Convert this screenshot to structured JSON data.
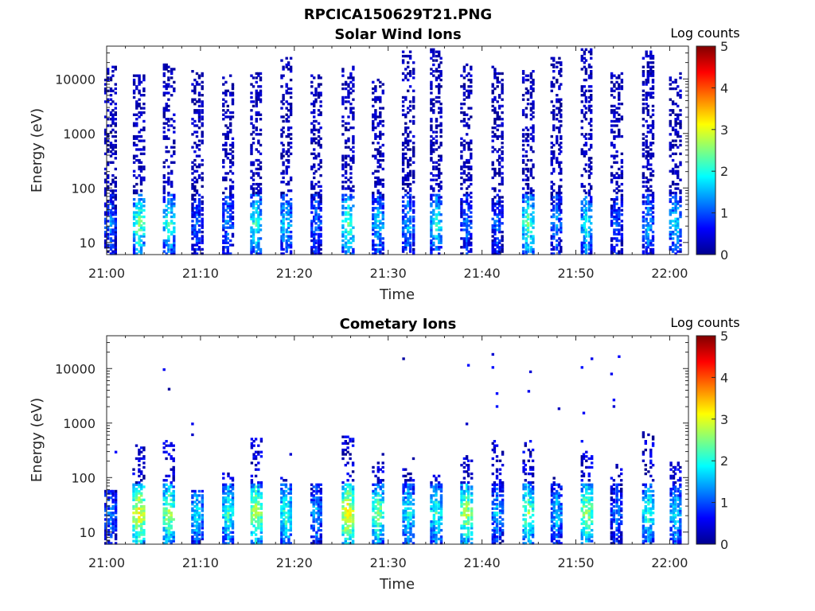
{
  "figure": {
    "title": "RPCICA150629T21.PNG"
  },
  "chart_data": [
    {
      "type": "heatmap",
      "title": "Solar Wind Ions",
      "xlabel": "Time",
      "ylabel": "Energy (eV)",
      "x_ticks": [
        "21:00",
        "21:10",
        "21:20",
        "21:30",
        "21:40",
        "21:50",
        "22:00"
      ],
      "x_range_minutes": [
        0,
        62
      ],
      "y_ticks": [
        "10",
        "100",
        "1000",
        "10000"
      ],
      "y_scale": "log",
      "y_range": [
        6,
        40000
      ],
      "colorbar": {
        "label": "Log counts",
        "ticks": [
          "0",
          "1",
          "2",
          "3",
          "4",
          "5"
        ],
        "range": [
          0,
          5
        ],
        "colormap": "jet"
      },
      "sweeps": [
        {
          "t": 0.3,
          "peak": 1.3,
          "emax": 18000
        },
        {
          "t": 3.3,
          "peak": 2.5,
          "emax": 12000
        },
        {
          "t": 6.5,
          "peak": 2.2,
          "emax": 19000
        },
        {
          "t": 9.5,
          "peak": 1.2,
          "emax": 14000
        },
        {
          "t": 12.8,
          "peak": 1.4,
          "emax": 12000
        },
        {
          "t": 15.8,
          "peak": 2.2,
          "emax": 13000
        },
        {
          "t": 19.0,
          "peak": 1.8,
          "emax": 25000
        },
        {
          "t": 22.2,
          "peak": 1.3,
          "emax": 12000
        },
        {
          "t": 25.6,
          "peak": 2.4,
          "emax": 20000
        },
        {
          "t": 28.8,
          "peak": 1.8,
          "emax": 10000
        },
        {
          "t": 32.0,
          "peak": 1.6,
          "emax": 32000
        },
        {
          "t": 35.0,
          "peak": 2.0,
          "emax": 35000
        },
        {
          "t": 38.2,
          "peak": 1.3,
          "emax": 20000
        },
        {
          "t": 41.5,
          "peak": 1.2,
          "emax": 18000
        },
        {
          "t": 44.8,
          "peak": 2.4,
          "emax": 16000
        },
        {
          "t": 47.8,
          "peak": 1.4,
          "emax": 26000
        },
        {
          "t": 51.0,
          "peak": 2.0,
          "emax": 35000
        },
        {
          "t": 54.2,
          "peak": 1.2,
          "emax": 13000
        },
        {
          "t": 57.6,
          "peak": 1.5,
          "emax": 32000
        },
        {
          "t": 60.5,
          "peak": 1.8,
          "emax": 13000
        }
      ]
    },
    {
      "type": "heatmap",
      "title": "Cometary Ions",
      "xlabel": "Time",
      "ylabel": "Energy (eV)",
      "x_ticks": [
        "21:00",
        "21:10",
        "21:20",
        "21:30",
        "21:40",
        "21:50",
        "22:00"
      ],
      "x_range_minutes": [
        0,
        62
      ],
      "y_ticks": [
        "10",
        "100",
        "1000",
        "10000"
      ],
      "y_scale": "log",
      "y_range": [
        6,
        40000
      ],
      "colorbar": {
        "label": "Log counts",
        "ticks": [
          "0",
          "1",
          "2",
          "3",
          "4",
          "5"
        ],
        "range": [
          0,
          5
        ],
        "colormap": "jet"
      },
      "sweeps": [
        {
          "t": 0.3,
          "peak": 1.4,
          "emax": 60
        },
        {
          "t": 3.3,
          "peak": 3.3,
          "emax": 400
        },
        {
          "t": 6.5,
          "peak": 2.8,
          "emax": 500
        },
        {
          "t": 9.5,
          "peak": 1.9,
          "emax": 60
        },
        {
          "t": 12.8,
          "peak": 2.2,
          "emax": 120
        },
        {
          "t": 15.8,
          "peak": 2.9,
          "emax": 550
        },
        {
          "t": 19.0,
          "peak": 2.3,
          "emax": 100
        },
        {
          "t": 22.2,
          "peak": 1.6,
          "emax": 80
        },
        {
          "t": 25.6,
          "peak": 3.4,
          "emax": 600
        },
        {
          "t": 28.8,
          "peak": 2.6,
          "emax": 200
        },
        {
          "t": 32.0,
          "peak": 2.0,
          "emax": 150
        },
        {
          "t": 35.0,
          "peak": 2.2,
          "emax": 120
        },
        {
          "t": 38.2,
          "peak": 2.9,
          "emax": 250
        },
        {
          "t": 41.5,
          "peak": 1.6,
          "emax": 500
        },
        {
          "t": 44.8,
          "peak": 2.6,
          "emax": 550
        },
        {
          "t": 47.8,
          "peak": 1.7,
          "emax": 100
        },
        {
          "t": 51.0,
          "peak": 2.8,
          "emax": 300
        },
        {
          "t": 54.2,
          "peak": 1.3,
          "emax": 200
        },
        {
          "t": 57.6,
          "peak": 2.2,
          "emax": 800
        },
        {
          "t": 60.5,
          "peak": 1.9,
          "emax": 200
        }
      ]
    }
  ]
}
